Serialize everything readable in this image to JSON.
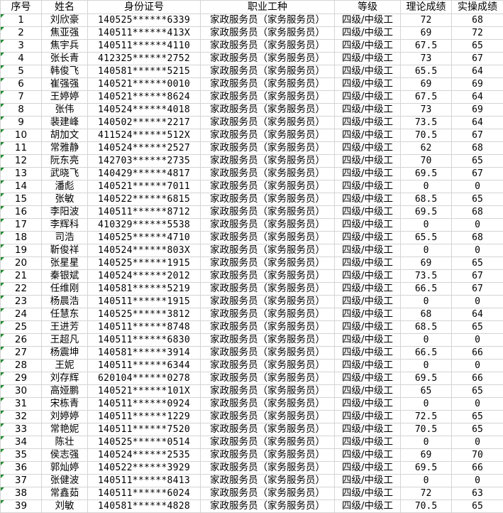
{
  "headers": [
    "序号",
    "姓名",
    "身份证号",
    "职业工种",
    "等级",
    "理论成绩",
    "实操成绩"
  ],
  "rows": [
    [
      "1",
      "刘欣豪",
      "140525******6339",
      "家政服务员（家务服务员）",
      "四级/中级工",
      "72",
      "68"
    ],
    [
      "2",
      "焦亚强",
      "140511******413X",
      "家政服务员（家务服务员）",
      "四级/中级工",
      "69",
      "72"
    ],
    [
      "3",
      "焦宇兵",
      "140511******4110",
      "家政服务员（家务服务员）",
      "四级/中级工",
      "67.5",
      "65"
    ],
    [
      "4",
      "张长青",
      "412325******2752",
      "家政服务员（家务服务员）",
      "四级/中级工",
      "73",
      "67"
    ],
    [
      "5",
      "韩俊飞",
      "140581******5215",
      "家政服务员（家务服务员）",
      "四级/中级工",
      "65.5",
      "64"
    ],
    [
      "6",
      "崔强强",
      "140521******0010",
      "家政服务员（家务服务员）",
      "四级/中级工",
      "69",
      "69"
    ],
    [
      "7",
      "王婷婷",
      "140521******8624",
      "家政服务员（家务服务员）",
      "四级/中级工",
      "67.5",
      "64"
    ],
    [
      "8",
      "张伟",
      "140524******4018",
      "家政服务员（家务服务员）",
      "四级/中级工",
      "73",
      "69"
    ],
    [
      "9",
      "裴建峰",
      "140502******2217",
      "家政服务员（家务服务员）",
      "四级/中级工",
      "73.5",
      "64"
    ],
    [
      "10",
      "胡加文",
      "411524******512X",
      "家政服务员（家务服务员）",
      "四级/中级工",
      "70.5",
      "67"
    ],
    [
      "11",
      "常雅静",
      "140524******2527",
      "家政服务员（家务服务员）",
      "四级/中级工",
      "62",
      "68"
    ],
    [
      "12",
      "阮东亮",
      "142703******2735",
      "家政服务员（家务服务员）",
      "四级/中级工",
      "70",
      "65"
    ],
    [
      "13",
      "武晓飞",
      "140429******4817",
      "家政服务员（家务服务员）",
      "四级/中级工",
      "69.5",
      "67"
    ],
    [
      "14",
      "潘彪",
      "140521******7011",
      "家政服务员（家务服务员）",
      "四级/中级工",
      "0",
      "0"
    ],
    [
      "15",
      "张敏",
      "140522******6815",
      "家政服务员（家务服务员）",
      "四级/中级工",
      "68.5",
      "65"
    ],
    [
      "16",
      "李阳波",
      "140511******8712",
      "家政服务员（家务服务员）",
      "四级/中级工",
      "69.5",
      "68"
    ],
    [
      "17",
      "李辉科",
      "410329******5538",
      "家政服务员（家务服务员）",
      "四级/中级工",
      "0",
      "0"
    ],
    [
      "18",
      "司浩",
      "140525******4710",
      "家政服务员（家务服务员）",
      "四级/中级工",
      "65.5",
      "68"
    ],
    [
      "19",
      "靳俊祥",
      "140524******803X",
      "家政服务员（家务服务员）",
      "四级/中级工",
      "0",
      "0"
    ],
    [
      "20",
      "张星星",
      "140525******1915",
      "家政服务员（家务服务员）",
      "四级/中级工",
      "69",
      "65"
    ],
    [
      "21",
      "秦银斌",
      "140524******2012",
      "家政服务员（家务服务员）",
      "四级/中级工",
      "73.5",
      "67"
    ],
    [
      "22",
      "任维刚",
      "140581******5219",
      "家政服务员（家务服务员）",
      "四级/中级工",
      "66.5",
      "67"
    ],
    [
      "23",
      "杨晨浩",
      "140511******1915",
      "家政服务员（家务服务员）",
      "四级/中级工",
      "0",
      "0"
    ],
    [
      "24",
      "任慧东",
      "140525******3812",
      "家政服务员（家务服务员）",
      "四级/中级工",
      "68",
      "64"
    ],
    [
      "25",
      "王进芳",
      "140511******8748",
      "家政服务员（家务服务员）",
      "四级/中级工",
      "68.5",
      "65"
    ],
    [
      "26",
      "王超凡",
      "140511******6830",
      "家政服务员（家务服务员）",
      "四级/中级工",
      "0",
      "0"
    ],
    [
      "27",
      "杨震坤",
      "140581******3914",
      "家政服务员（家务服务员）",
      "四级/中级工",
      "66.5",
      "66"
    ],
    [
      "28",
      "王妮",
      "140511******6344",
      "家政服务员（家务服务员）",
      "四级/中级工",
      "0",
      "0"
    ],
    [
      "29",
      "刘存辉",
      "620104******0278",
      "家政服务员（家务服务员）",
      "四级/中级工",
      "69.5",
      "66"
    ],
    [
      "30",
      "高娅鹏",
      "140521******101X",
      "家政服务员（家务服务员）",
      "四级/中级工",
      "65",
      "65"
    ],
    [
      "31",
      "宋栋青",
      "140511******0924",
      "家政服务员（家务服务员）",
      "四级/中级工",
      "0",
      "0"
    ],
    [
      "32",
      "刘婷婷",
      "140511******1229",
      "家政服务员（家务服务员）",
      "四级/中级工",
      "72.5",
      "65"
    ],
    [
      "33",
      "常艳妮",
      "140511******7520",
      "家政服务员（家务服务员）",
      "四级/中级工",
      "70.5",
      "65"
    ],
    [
      "34",
      "陈壮",
      "140525******0514",
      "家政服务员（家务服务员）",
      "四级/中级工",
      "0",
      "0"
    ],
    [
      "35",
      "侯志强",
      "140524******2535",
      "家政服务员（家务服务员）",
      "四级/中级工",
      "69",
      "70"
    ],
    [
      "36",
      "郭灿婷",
      "140522******3929",
      "家政服务员（家务服务员）",
      "四级/中级工",
      "69.5",
      "66"
    ],
    [
      "37",
      "张健波",
      "140511******8413",
      "家政服务员（家务服务员）",
      "四级/中级工",
      "0",
      "0"
    ],
    [
      "38",
      "常鑫茹",
      "140511******6024",
      "家政服务员（家务服务员）",
      "四级/中级工",
      "72",
      "63"
    ],
    [
      "39",
      "刘敏",
      "140581******4828",
      "家政服务员（家务服务员）",
      "四级/中级工",
      "70.5",
      "65"
    ]
  ]
}
